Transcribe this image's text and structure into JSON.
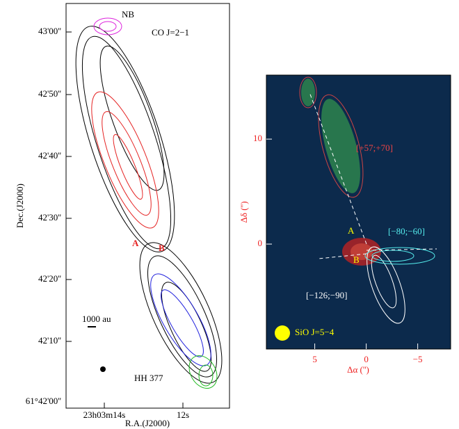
{
  "left_panel": {
    "y_axis_label": "Dec.(J2000)",
    "x_axis_label": "R.A.(J2000)",
    "y_tick_labels": [
      "43'00''",
      "42'50''",
      "42'40''",
      "42'30''",
      "42'20''",
      "42'10''",
      "61°42'00''"
    ],
    "x_tick_labels": [
      "23h03m14s",
      "12s"
    ],
    "annotations": {
      "nb": "NB",
      "line": "CO J=2−1",
      "a": "A",
      "b": "B",
      "scale": "1000 au",
      "object": "HH 377"
    }
  },
  "right_panel": {
    "y_axis_label": "Δδ ('')",
    "x_axis_label": "Δα ('')",
    "xlim": [
      9.7,
      -8.2
    ],
    "ylim": [
      -10,
      16.1
    ],
    "xticks": [
      5,
      0,
      {
        "value": -5,
        "label": "−5"
      }
    ],
    "yticks": [
      10,
      0
    ],
    "annotations": {
      "red": "[+57;+70]",
      "cyan": "[−80;−60]",
      "white": "[−126;−90]",
      "a": "A",
      "b": "B",
      "beam": "SiO J=5−4"
    }
  }
}
